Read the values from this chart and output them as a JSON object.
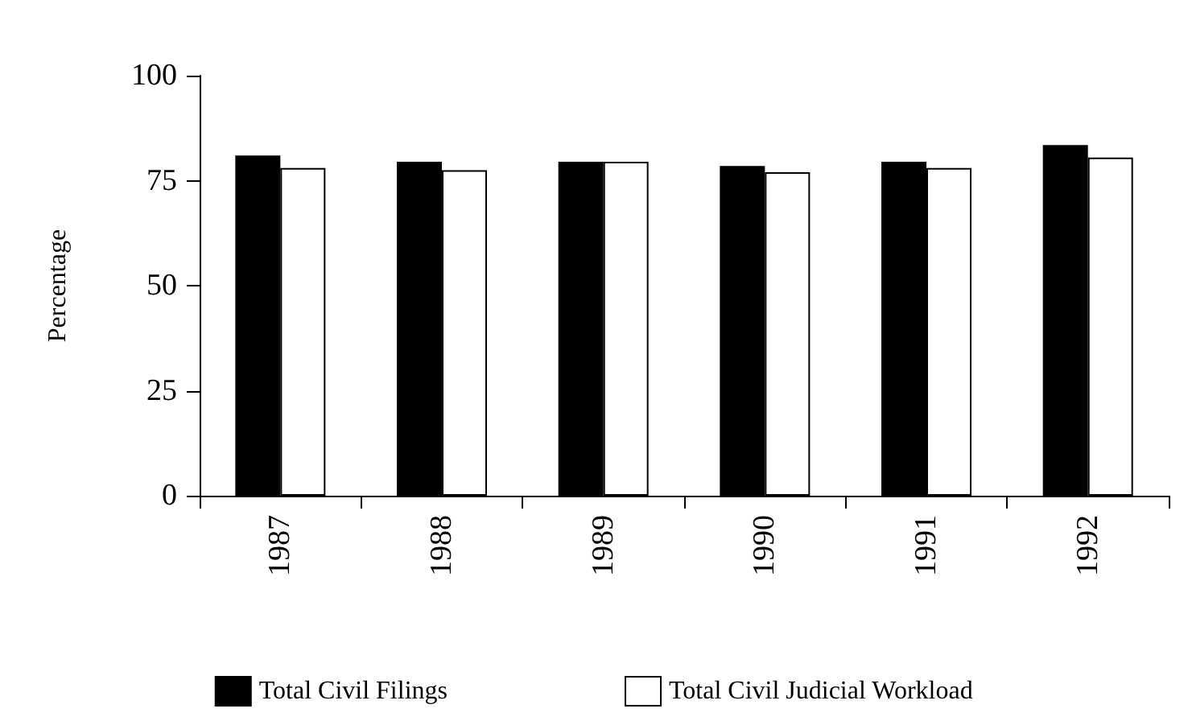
{
  "chart_data": {
    "type": "bar",
    "ylabel": "Percentage",
    "categories": [
      "1987",
      "1988",
      "1989",
      "1990",
      "1991",
      "1992"
    ],
    "series": [
      {
        "name": "Total Civil Filings",
        "color": "#000000",
        "values": [
          81,
          79.5,
          79.5,
          78.5,
          79.5,
          83.5
        ]
      },
      {
        "name": "Total Civil Judicial Workload",
        "color": "#ffffff",
        "values": [
          78,
          77.5,
          79.5,
          77,
          78,
          80.5
        ]
      }
    ],
    "ylim": [
      0,
      100
    ],
    "yticks": [
      0,
      25,
      50,
      75,
      100
    ],
    "grid": false,
    "legend": "bottom"
  }
}
